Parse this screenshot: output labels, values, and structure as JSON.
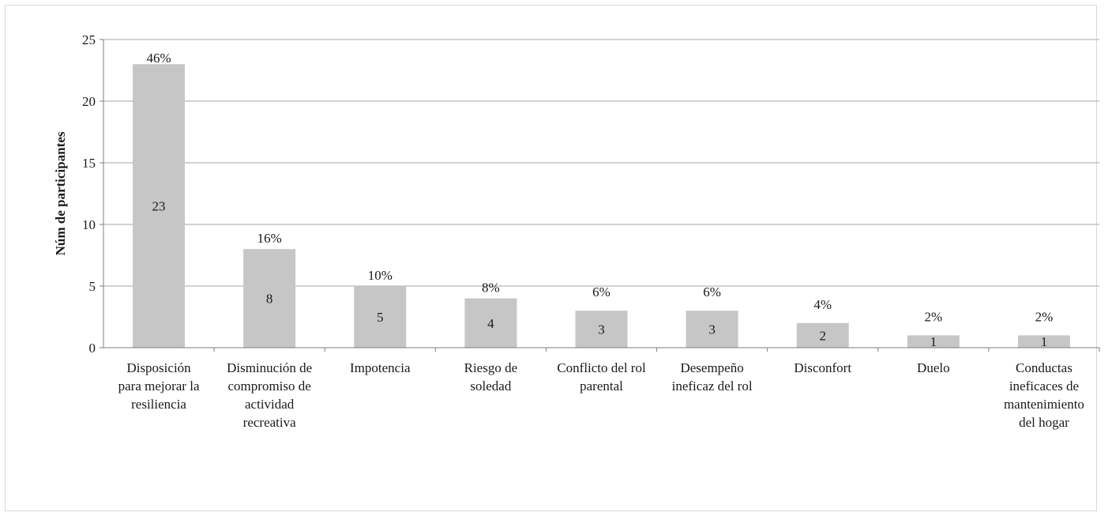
{
  "chart_data": {
    "type": "bar",
    "title": "",
    "xlabel": "",
    "ylabel": "Núm de participantes",
    "ylim": [
      0,
      25
    ],
    "yticks": [
      0,
      5,
      10,
      15,
      20,
      25
    ],
    "grid": true,
    "legend": "none",
    "bar_color": "#c6c6c6",
    "grid_color": "#a6a6a6",
    "categories": [
      "Disposición para mejorar la resiliencia",
      "Disminución de compromiso de actividad recreativa",
      "Impotencia",
      "Riesgo de soledad",
      "Conflicto del rol parental",
      "Desempeño ineficaz del rol",
      "Disconfort",
      "Duelo",
      "Conductas ineficaces de mantenimiento del hogar"
    ],
    "category_lines": [
      [
        "Disposición",
        "para mejorar la",
        "resiliencia"
      ],
      [
        "Disminución de",
        "compromiso de",
        "actividad",
        "recreativa"
      ],
      [
        "Impotencia"
      ],
      [
        "Riesgo de",
        "soledad"
      ],
      [
        "Conflicto del rol",
        "parental"
      ],
      [
        "Desempeño",
        "ineficaz del rol"
      ],
      [
        "Disconfort"
      ],
      [
        "Duelo"
      ],
      [
        "Conductas",
        "ineficaces de",
        "mantenimiento",
        "del hogar"
      ]
    ],
    "values": [
      23,
      8,
      5,
      4,
      3,
      3,
      2,
      1,
      1
    ],
    "percent_labels": [
      "46%",
      "16%",
      "10%",
      "8%",
      "6%",
      "6%",
      "4%",
      "2%",
      "2%"
    ]
  }
}
